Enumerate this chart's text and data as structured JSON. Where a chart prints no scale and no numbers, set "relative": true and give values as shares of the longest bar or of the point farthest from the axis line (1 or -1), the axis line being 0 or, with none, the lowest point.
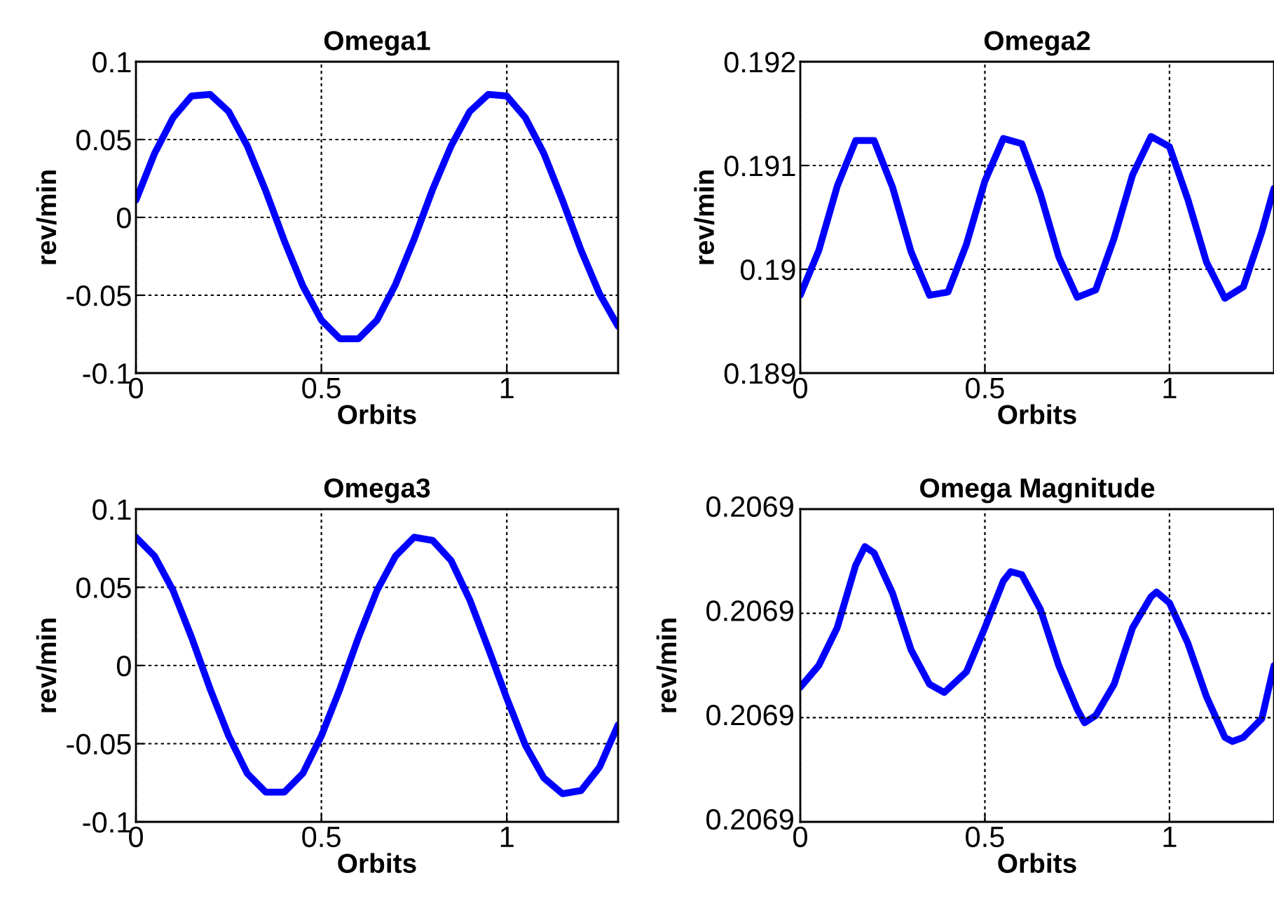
{
  "chart_data": [
    {
      "type": "line",
      "title": "Omega1",
      "xlabel": "Orbits",
      "ylabel": "rev/min",
      "xlim": [
        0,
        1.3
      ],
      "xticks": [
        0,
        0.5,
        1
      ],
      "ylim": [
        -0.1,
        0.1
      ],
      "yticks": [
        -0.1,
        -0.05,
        0,
        0.05,
        0.1
      ],
      "grid": true,
      "line_style": "solid",
      "x": [
        0,
        0.05,
        0.1,
        0.15,
        0.2,
        0.25,
        0.3,
        0.35,
        0.4,
        0.45,
        0.5,
        0.55,
        0.6,
        0.65,
        0.7,
        0.75,
        0.8,
        0.85,
        0.9,
        0.95,
        1.0,
        1.05,
        1.1,
        1.15,
        1.2,
        1.25,
        1.3
      ],
      "series": [
        {
          "color": "#0000ff",
          "values": [
            0.011,
            0.041,
            0.064,
            0.078,
            0.079,
            0.068,
            0.046,
            0.017,
            -0.015,
            -0.044,
            -0.066,
            -0.078,
            -0.078,
            -0.066,
            -0.043,
            -0.014,
            0.018,
            0.046,
            0.068,
            0.079,
            0.078,
            0.064,
            0.041,
            0.011,
            -0.021,
            -0.049,
            -0.07
          ]
        }
      ]
    },
    {
      "type": "line",
      "title": "Omega2",
      "xlabel": "Orbits",
      "ylabel": "rev/min",
      "xlim": [
        0,
        1.283
      ],
      "xticks": [
        0,
        0.5,
        1
      ],
      "ylim": [
        0.189,
        0.192
      ],
      "yticks": [
        0.189,
        0.19,
        0.191,
        0.192
      ],
      "grid": true,
      "line_style": "solid",
      "x": [
        0,
        0.05,
        0.1,
        0.15,
        0.2,
        0.25,
        0.3,
        0.35,
        0.4,
        0.45,
        0.5,
        0.55,
        0.6,
        0.65,
        0.7,
        0.75,
        0.8,
        0.85,
        0.9,
        0.95,
        1.0,
        1.05,
        1.1,
        1.15,
        1.2,
        1.25,
        1.283
      ],
      "series": [
        {
          "color": "#0000ff",
          "values": [
            0.18975,
            0.19018,
            0.1908,
            0.19124,
            0.19124,
            0.19079,
            0.19017,
            0.18975,
            0.18978,
            0.19024,
            0.19085,
            0.19126,
            0.19121,
            0.19073,
            0.19012,
            0.18973,
            0.1898,
            0.1903,
            0.19091,
            0.19128,
            0.19118,
            0.19067,
            0.19007,
            0.18972,
            0.18983,
            0.19036,
            0.19078
          ]
        }
      ]
    },
    {
      "type": "line",
      "title": "Omega3",
      "xlabel": "Orbits",
      "ylabel": "rev/min",
      "xlim": [
        0,
        1.3
      ],
      "xticks": [
        0,
        0.5,
        1
      ],
      "ylim": [
        -0.1,
        0.1
      ],
      "yticks": [
        -0.1,
        -0.05,
        0,
        0.05,
        0.1
      ],
      "grid": true,
      "line_style": "solid",
      "x": [
        0,
        0.05,
        0.1,
        0.15,
        0.2,
        0.25,
        0.3,
        0.35,
        0.4,
        0.45,
        0.5,
        0.55,
        0.6,
        0.65,
        0.7,
        0.75,
        0.8,
        0.85,
        0.9,
        0.95,
        1.0,
        1.05,
        1.1,
        1.15,
        1.2,
        1.25,
        1.3
      ],
      "series": [
        {
          "color": "#0000ff",
          "values": [
            0.082,
            0.07,
            0.048,
            0.018,
            -0.015,
            -0.045,
            -0.069,
            -0.081,
            -0.081,
            -0.069,
            -0.045,
            -0.015,
            0.018,
            0.048,
            0.07,
            0.082,
            0.08,
            0.067,
            0.042,
            0.011,
            -0.021,
            -0.051,
            -0.072,
            -0.082,
            -0.08,
            -0.065,
            -0.038
          ]
        }
      ]
    },
    {
      "type": "line",
      "title": "Omega Magnitude",
      "xlabel": "Orbits",
      "ylabel": "rev/min",
      "relative": true,
      "xlim": [
        0,
        1.283
      ],
      "xticks": [
        0,
        0.5,
        1
      ],
      "annotations": [
        "0.2069",
        "0.2069",
        "0.2069",
        "0.2069"
      ],
      "grid": true,
      "line_style": "solid",
      "x": [
        0,
        0.05,
        0.1,
        0.15,
        0.175,
        0.2,
        0.25,
        0.3,
        0.35,
        0.39,
        0.45,
        0.5,
        0.55,
        0.57,
        0.6,
        0.65,
        0.7,
        0.75,
        0.77,
        0.8,
        0.85,
        0.9,
        0.95,
        0.965,
        1.0,
        1.05,
        1.1,
        1.15,
        1.17,
        1.2,
        1.25,
        1.283
      ],
      "series": [
        {
          "color": "#0000ff",
          "values": [
            0.489,
            0.568,
            0.705,
            0.932,
            1,
            0.977,
            0.83,
            0.625,
            0.5,
            0.47,
            0.545,
            0.705,
            0.875,
            0.909,
            0.898,
            0.773,
            0.568,
            0.409,
            0.36,
            0.386,
            0.5,
            0.705,
            0.818,
            0.835,
            0.795,
            0.648,
            0.455,
            0.307,
            0.292,
            0.307,
            0.375,
            0.568
          ]
        }
      ]
    }
  ]
}
